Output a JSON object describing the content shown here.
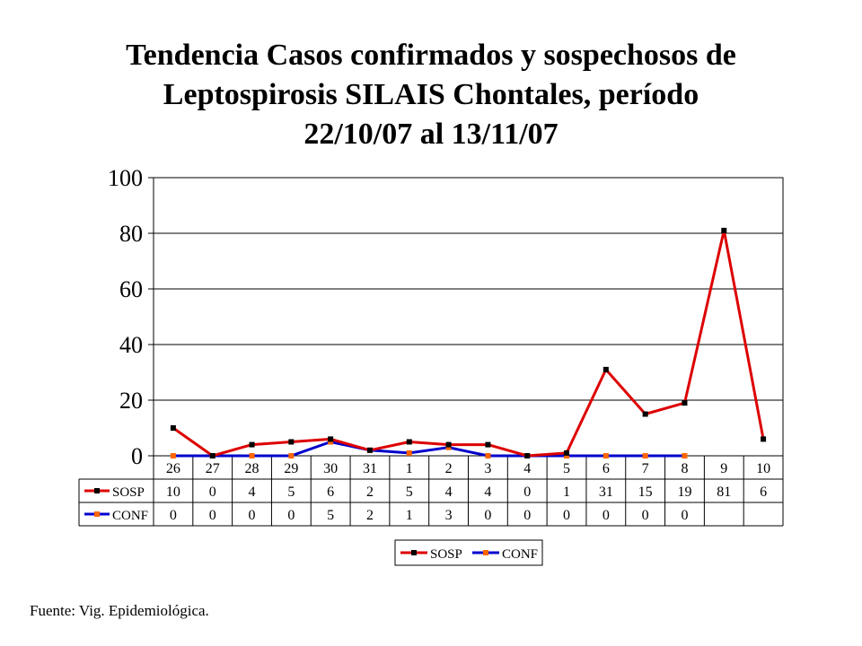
{
  "title_lines": [
    "Tendencia Casos confirmados y sospechosos de",
    "Leptospirosis SILAIS Chontales, período",
    "22/10/07 al 13/11/07"
  ],
  "source": "Fuente: Vig. Epidemiológica.",
  "chart_data": {
    "type": "line",
    "title": "Tendencia Casos confirmados y sospechosos de Leptospirosis SILAIS Chontales, período 22/10/07 al 13/11/07",
    "categories": [
      "26",
      "27",
      "28",
      "29",
      "30",
      "31",
      "1",
      "2",
      "3",
      "4",
      "5",
      "6",
      "7",
      "8",
      "9",
      "10"
    ],
    "series": [
      {
        "name": "SOSP",
        "color": "#dd0000",
        "marker_color": "#000000",
        "values": [
          10,
          0,
          4,
          5,
          6,
          2,
          5,
          4,
          4,
          0,
          1,
          31,
          15,
          19,
          81,
          6
        ]
      },
      {
        "name": "CONF",
        "color": "#0000cc",
        "marker_color": "#ff6600",
        "values": [
          0,
          0,
          0,
          0,
          5,
          2,
          1,
          3,
          0,
          0,
          0,
          0,
          0,
          0,
          null,
          null
        ]
      }
    ],
    "ylim": [
      0,
      100
    ],
    "yticks": [
      0,
      20,
      40,
      60,
      80,
      100
    ],
    "xlabel": "",
    "ylabel": "",
    "grid": true,
    "data_table": true,
    "legend_position": "bottom"
  }
}
